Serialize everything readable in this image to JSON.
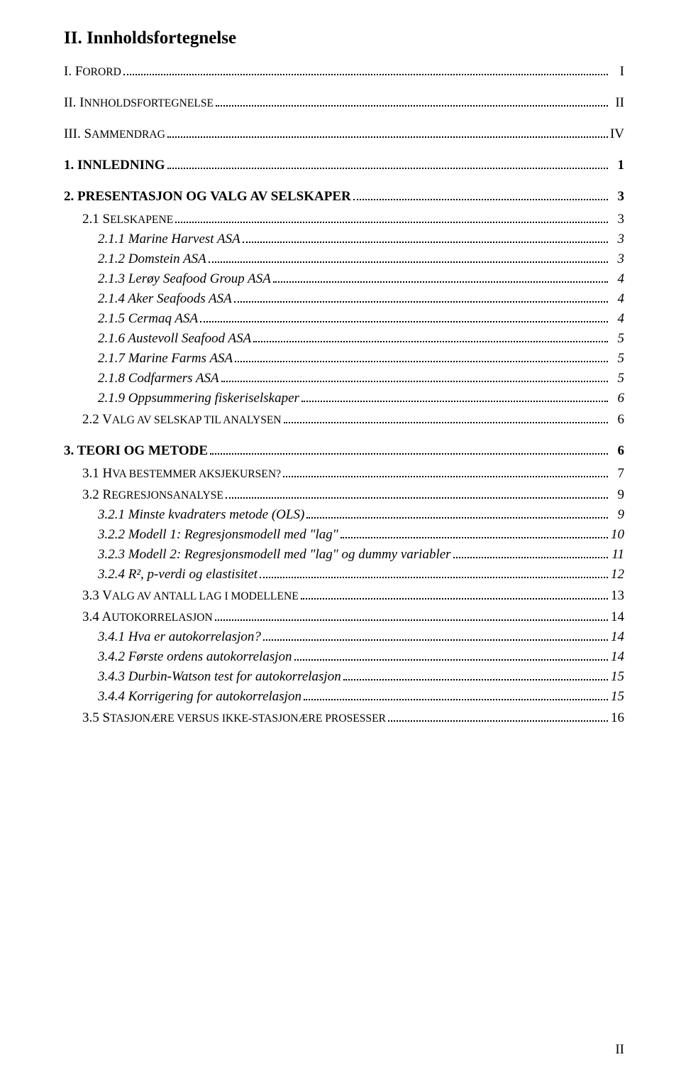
{
  "title": "II. Innholdsfortegnelse",
  "entries": [
    {
      "level": 1,
      "style": "smallcaps",
      "prefix": "I. F",
      "rest": "ORORD",
      "page": "I"
    },
    {
      "level": 1,
      "style": "smallcaps",
      "prefix": "II. I",
      "rest": "NNHOLDSFORTEGNELSE",
      "page": "II"
    },
    {
      "level": 1,
      "style": "smallcaps",
      "prefix": "III. S",
      "rest": "AMMENDRAG",
      "page": "IV"
    },
    {
      "level": 1,
      "style": "bold",
      "text": "1. INNLEDNING",
      "page": "1"
    },
    {
      "level": 1,
      "style": "bold",
      "text": "2. PRESENTASJON OG VALG AV SELSKAPER",
      "page": "3"
    },
    {
      "level": 2,
      "prefix": "2.1 S",
      "rest": "ELSKAPENE",
      "page": "3"
    },
    {
      "level": 3,
      "text": "2.1.1 Marine Harvest ASA",
      "page": "3"
    },
    {
      "level": 3,
      "text": "2.1.2 Domstein ASA",
      "page": "3"
    },
    {
      "level": 3,
      "text": "2.1.3 Lerøy Seafood Group ASA",
      "page": "4"
    },
    {
      "level": 3,
      "text": "2.1.4 Aker Seafoods ASA",
      "page": "4"
    },
    {
      "level": 3,
      "text": "2.1.5 Cermaq ASA",
      "page": "4"
    },
    {
      "level": 3,
      "text": "2.1.6 Austevoll Seafood ASA",
      "page": "5"
    },
    {
      "level": 3,
      "text": "2.1.7 Marine Farms ASA",
      "page": "5"
    },
    {
      "level": 3,
      "text": "2.1.8 Codfarmers ASA",
      "page": "5"
    },
    {
      "level": 3,
      "text": "2.1.9 Oppsummering fiskeriselskaper",
      "page": "6"
    },
    {
      "level": 2,
      "prefix": "2.2 V",
      "rest": "ALG AV SELSKAP TIL ANALYSEN",
      "page": "6"
    },
    {
      "level": 1,
      "style": "bold",
      "text": "3. TEORI OG METODE",
      "page": "6"
    },
    {
      "level": 2,
      "prefix": "3.1 H",
      "rest": "VA BESTEMMER AKSJEKURSEN?",
      "page": "7"
    },
    {
      "level": 2,
      "prefix": "3.2 R",
      "rest": "EGRESJONSANALYSE",
      "page": "9"
    },
    {
      "level": 3,
      "text": "3.2.1 Minste kvadraters metode (OLS)",
      "page": "9"
    },
    {
      "level": 3,
      "text": "3.2.2 Modell 1: Regresjonsmodell med \"lag\"",
      "page": "10"
    },
    {
      "level": 3,
      "text": "3.2.3 Modell 2: Regresjonsmodell med \"lag\" og dummy variabler",
      "page": "11"
    },
    {
      "level": 3,
      "text": "3.2.4 R², p-verdi og elastisitet",
      "page": "12"
    },
    {
      "level": 2,
      "prefix": "3.3 V",
      "rest": "ALG AV ANTALL LAG I MODELLENE",
      "page": "13"
    },
    {
      "level": 2,
      "prefix": "3.4 A",
      "rest": "UTOKORRELASJON",
      "page": "14"
    },
    {
      "level": 3,
      "text": "3.4.1 Hva er autokorrelasjon?",
      "page": "14"
    },
    {
      "level": 3,
      "text": "3.4.2 Første ordens autokorrelasjon",
      "page": "14"
    },
    {
      "level": 3,
      "text": "3.4.3 Durbin-Watson test for autokorrelasjon",
      "page": "15"
    },
    {
      "level": 3,
      "text": "3.4.4 Korrigering for autokorrelasjon",
      "page": "15"
    },
    {
      "level": 2,
      "prefix": "3.5 S",
      "rest": "TASJONÆRE VERSUS IKKE-STASJONÆRE PROSESSER",
      "page": "16"
    }
  ],
  "footer_page": "II"
}
